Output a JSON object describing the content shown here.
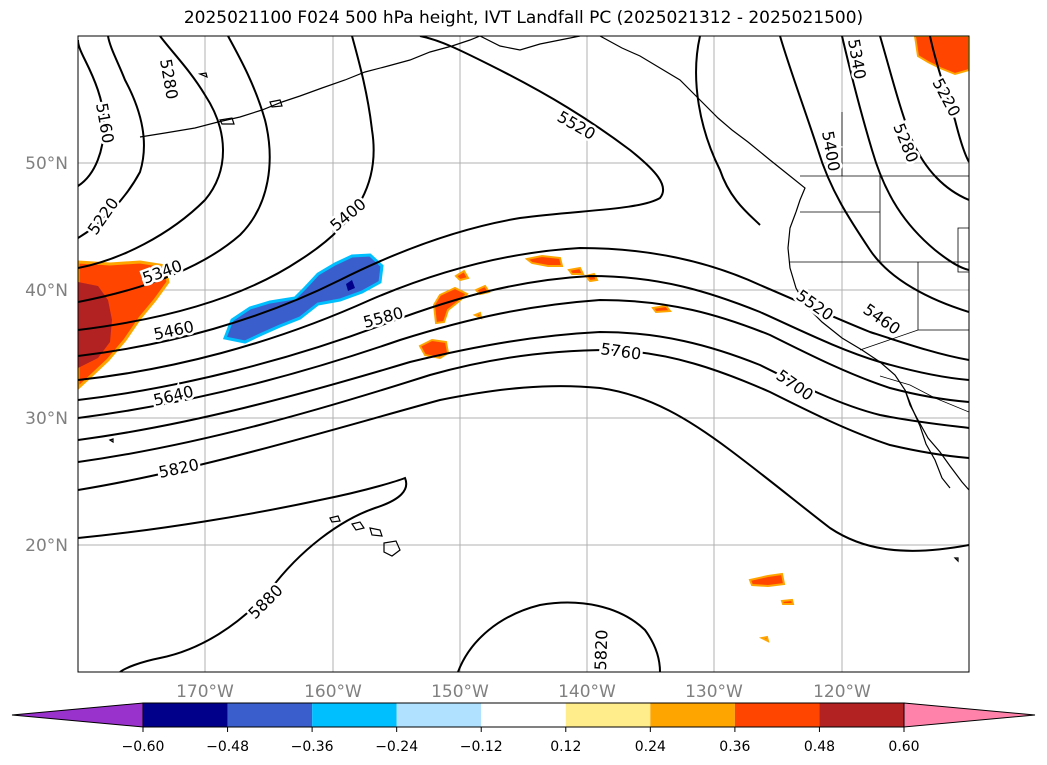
{
  "title": "2025021100 F024 500 hPa height, IVT Landfall PC (2025021312 - 2025021500)",
  "latitudes": [
    {
      "label": "50°N",
      "lat": 50
    },
    {
      "label": "40°N",
      "lat": 40
    },
    {
      "label": "30°N",
      "lat": 30
    },
    {
      "label": "20°N",
      "lat": 20
    }
  ],
  "longitudes": [
    {
      "label": "170°W",
      "lon": -170
    },
    {
      "label": "160°W",
      "lon": -160
    },
    {
      "label": "150°W",
      "lon": -150
    },
    {
      "label": "140°W",
      "lon": -140
    },
    {
      "label": "130°W",
      "lon": -130
    },
    {
      "label": "120°W",
      "lon": -120
    }
  ],
  "map_extent": {
    "lon_min": -180,
    "lon_max": -110,
    "lat_min": 10,
    "lat_max": 60
  },
  "contour_labels": [
    "5280",
    "5160",
    "5220",
    "5340",
    "5400",
    "5460",
    "5520",
    "5580",
    "5640",
    "5760",
    "5820",
    "5880",
    "5820",
    "5700",
    "5520",
    "5460",
    "5400",
    "5280",
    "5340",
    "5220"
  ],
  "colorbar": {
    "ticks": [
      "−0.60",
      "−0.48",
      "−0.36",
      "−0.24",
      "−0.12",
      "0.12",
      "0.24",
      "0.36",
      "0.48",
      "0.60"
    ],
    "colors": [
      "#9932cc",
      "#00008b",
      "#3a5fcd",
      "#00bfff",
      "#b0e2ff",
      "#ffffff",
      "#ffec8b",
      "#ffa500",
      "#ff4500",
      "#b22222",
      "#ff82ab"
    ]
  }
}
